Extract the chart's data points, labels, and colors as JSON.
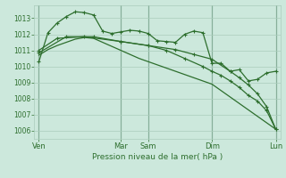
{
  "background_color": "#cce8dc",
  "grid_color": "#aaccbb",
  "line_color": "#2d6e2d",
  "text_color": "#2d6e2d",
  "xlabel": "Pression niveau de la mer( hPa )",
  "ylim": [
    1005.5,
    1013.8
  ],
  "yticks": [
    1006,
    1007,
    1008,
    1009,
    1010,
    1011,
    1012,
    1013
  ],
  "day_labels": [
    "Ven",
    "Mar",
    "Sam",
    "Dim",
    "Lun"
  ],
  "day_positions": [
    0,
    9,
    12,
    19,
    26
  ],
  "series1_x": [
    0,
    1,
    2,
    3,
    4,
    5,
    6,
    7,
    8,
    9,
    10,
    11,
    12,
    13,
    14,
    15,
    16,
    17,
    18,
    19,
    20,
    21,
    22,
    23,
    24,
    25,
    26
  ],
  "series1_y": [
    1010.3,
    1012.1,
    1012.7,
    1013.1,
    1013.4,
    1013.35,
    1013.2,
    1012.2,
    1012.05,
    1012.15,
    1012.25,
    1012.2,
    1012.05,
    1011.6,
    1011.55,
    1011.5,
    1012.0,
    1012.2,
    1012.1,
    1010.2,
    1010.2,
    1009.7,
    1009.8,
    1009.1,
    1009.2,
    1009.6,
    1009.7
  ],
  "series2_x": [
    0,
    1,
    2,
    3,
    4,
    5,
    6,
    7,
    8,
    9,
    10,
    11,
    12,
    13,
    14,
    15,
    16,
    17,
    18,
    19,
    20,
    21,
    22,
    23,
    24,
    25,
    26
  ],
  "series2_y": [
    1010.7,
    1011.05,
    1011.3,
    1011.5,
    1011.7,
    1011.8,
    1011.75,
    1011.5,
    1011.25,
    1011.0,
    1010.75,
    1010.5,
    1010.3,
    1010.1,
    1009.9,
    1009.7,
    1009.5,
    1009.3,
    1009.1,
    1008.9,
    1008.5,
    1008.1,
    1007.7,
    1007.3,
    1006.9,
    1006.5,
    1006.1
  ],
  "series3_x": [
    0,
    2,
    5,
    9,
    12,
    15,
    17,
    19,
    21,
    22,
    23,
    24,
    25,
    26
  ],
  "series3_y": [
    1011.0,
    1011.75,
    1011.85,
    1011.55,
    1011.3,
    1011.05,
    1010.75,
    1010.45,
    1009.7,
    1009.3,
    1008.85,
    1008.3,
    1007.5,
    1006.1
  ],
  "series4_x": [
    0,
    3,
    6,
    9,
    12,
    14,
    16,
    18,
    19,
    20,
    21,
    22,
    23,
    24,
    25,
    26
  ],
  "series4_y": [
    1010.85,
    1011.85,
    1011.85,
    1011.55,
    1011.3,
    1011.0,
    1010.5,
    1010.0,
    1009.7,
    1009.45,
    1009.1,
    1008.7,
    1008.2,
    1007.85,
    1007.25,
    1006.1
  ],
  "xlim": [
    -0.5,
    26.5
  ]
}
